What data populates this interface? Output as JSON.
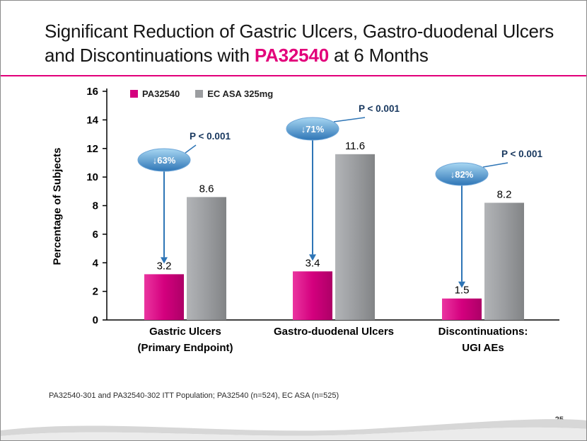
{
  "slide": {
    "title": {
      "prefix": "Significant Reduction of Gastric Ulcers, Gastro-duodenal Ulcers and Discontinuations with ",
      "highlight": "PA32540",
      "suffix": " at 6 Months"
    },
    "footnote": "PA32540-301 and PA32540-302 ITT Population; PA32540 (n=524), EC ASA (n=525)",
    "page_number": "25"
  },
  "colors": {
    "accent_pink": "#e2007a",
    "bar_pink": "#d4007e",
    "bar_gray": "#9b9da0",
    "annotation_blue_dark": "#2e75b6",
    "annotation_blue_light": "#a8d7f2",
    "pvalue_text": "#17375e"
  },
  "chart_data": {
    "type": "bar",
    "title": "",
    "xlabel": "",
    "ylabel": "Percentage of Subjects",
    "ylim": [
      0,
      16
    ],
    "ytick_step": 2,
    "grid": false,
    "legend_position": "top-left",
    "legend": [
      {
        "label": "PA32540",
        "color": "#d4007e"
      },
      {
        "label": "EC ASA 325mg",
        "color": "#9b9da0"
      }
    ],
    "categories": [
      [
        "Gastric Ulcers",
        "(Primary Endpoint)"
      ],
      [
        "Gastro-duodenal Ulcers"
      ],
      [
        "Discontinuations:",
        "UGI AEs"
      ]
    ],
    "series": [
      {
        "name": "PA32540",
        "values": [
          3.2,
          3.4,
          1.5
        ]
      },
      {
        "name": "EC ASA 325mg",
        "values": [
          8.6,
          11.6,
          8.2
        ]
      }
    ],
    "annotations": [
      {
        "reduction": "↓63%",
        "p_value": "P < 0.001"
      },
      {
        "reduction": "↓71%",
        "p_value": "P < 0.001"
      },
      {
        "reduction": "↓82%",
        "p_value": "P < 0.001"
      }
    ]
  }
}
